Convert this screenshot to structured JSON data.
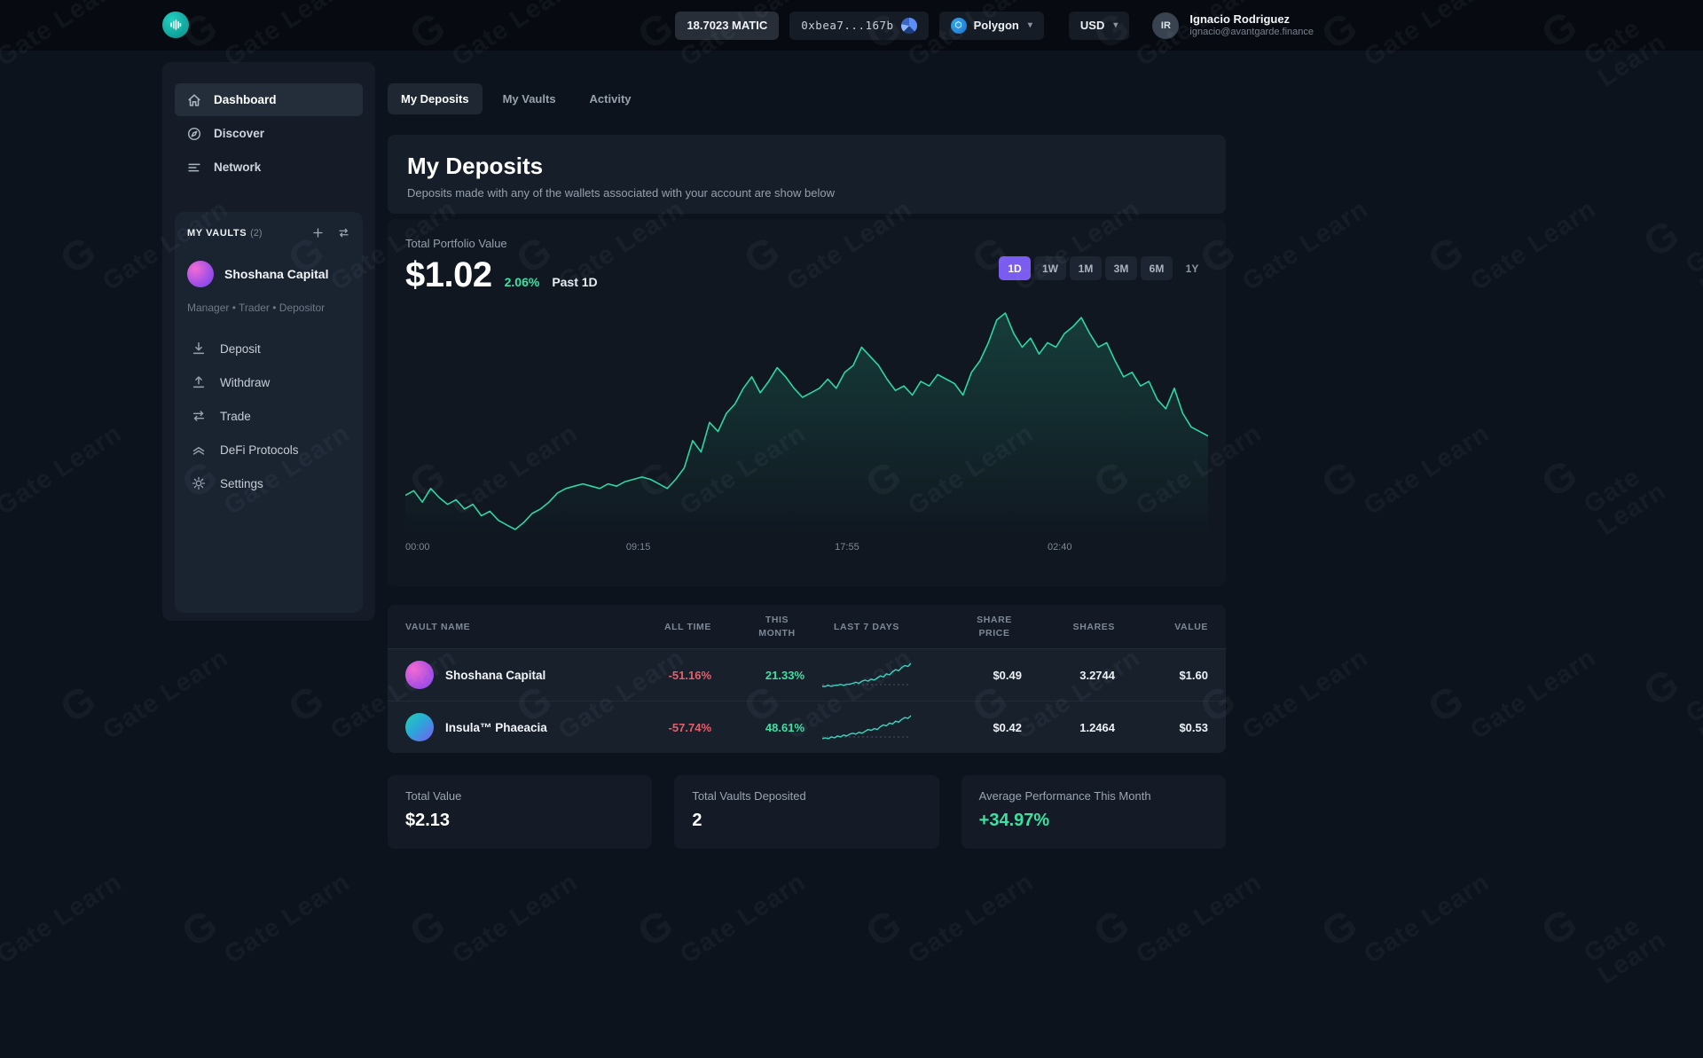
{
  "watermark": {
    "text": "Gate Learn",
    "logo": "G"
  },
  "topbar": {
    "balance": "18.7023 MATIC",
    "wallet": "0xbea7...167b",
    "network": "Polygon",
    "currency": "USD",
    "user": {
      "initials": "IR",
      "name": "Ignacio Rodriguez",
      "email": "ignacio@avantgarde.finance"
    }
  },
  "sidebar": {
    "nav": [
      {
        "label": "Dashboard",
        "icon": "home-icon",
        "active": true
      },
      {
        "label": "Discover",
        "icon": "compass-icon",
        "active": false
      },
      {
        "label": "Network",
        "icon": "network-icon",
        "active": false
      }
    ],
    "vaults_header": {
      "title": "MY VAULTS",
      "count": "(2)"
    },
    "vault": {
      "name": "Shoshana Capital",
      "roles": "Manager • Trader • Depositor"
    },
    "vault_menu": [
      {
        "label": "Deposit",
        "icon": "deposit-icon"
      },
      {
        "label": "Withdraw",
        "icon": "withdraw-icon"
      },
      {
        "label": "Trade",
        "icon": "trade-icon"
      },
      {
        "label": "DeFi Protocols",
        "icon": "defi-protocols-icon"
      },
      {
        "label": "Settings",
        "icon": "settings-icon"
      }
    ]
  },
  "tabs": [
    {
      "label": "My Deposits",
      "active": true
    },
    {
      "label": "My Vaults",
      "active": false
    },
    {
      "label": "Activity",
      "active": false
    }
  ],
  "page": {
    "title": "My Deposits",
    "subtitle": "Deposits made with any of the wallets associated with your account are show below"
  },
  "portfolio": {
    "label": "Total Portfolio Value",
    "value": "$1.02",
    "change": "2.06%",
    "period": "Past 1D",
    "ranges": [
      "1D",
      "1W",
      "1M",
      "3M",
      "6M",
      "1Y"
    ],
    "active_range": "1D",
    "x_labels": [
      "00:00",
      "09:15",
      "17:55",
      "02:40"
    ]
  },
  "chart_data": {
    "type": "line",
    "title": "Total Portfolio Value (Past 1D)",
    "xlabel": "time",
    "ylabel": "portfolio value (unlabeled axis, normalized 0-100)",
    "x_tick_labels": [
      "00:00",
      "09:15",
      "17:55",
      "02:40"
    ],
    "line_color": "#2fd6a4",
    "values": [
      19,
      21,
      16,
      22,
      18,
      15,
      17,
      13,
      15,
      10,
      12,
      8,
      6,
      4,
      7,
      11,
      13,
      16,
      20,
      22,
      23,
      24,
      23,
      22,
      24,
      23,
      25,
      26,
      27,
      26,
      24,
      22,
      26,
      31,
      43,
      38,
      51,
      47,
      55,
      59,
      66,
      71,
      64,
      69,
      75,
      71,
      66,
      62,
      64,
      66,
      70,
      66,
      73,
      76,
      84,
      80,
      76,
      70,
      65,
      67,
      63,
      69,
      67,
      72,
      70,
      68,
      63,
      73,
      78,
      86,
      96,
      99,
      90,
      84,
      88,
      81,
      86,
      84,
      90,
      93,
      97,
      90,
      84,
      86,
      78,
      71,
      73,
      67,
      69,
      61,
      57,
      66,
      55,
      49,
      47,
      45
    ]
  },
  "table": {
    "columns": [
      "VAULT NAME",
      "ALL TIME",
      "THIS MONTH",
      "LAST 7 DAYS",
      "SHARE PRICE",
      "SHARES",
      "VALUE"
    ],
    "rows": [
      {
        "name": "Shoshana Capital",
        "all_time": "-51.16%",
        "this_month": "21.33%",
        "share_price": "$0.49",
        "shares": "3.2744",
        "value": "$1.60",
        "spark": [
          3,
          3,
          4,
          3,
          4,
          4,
          5,
          4,
          5,
          5,
          6,
          7,
          6,
          8,
          9,
          8,
          10,
          9,
          11,
          13,
          12,
          15,
          14,
          17,
          19,
          18,
          21,
          23,
          22,
          25
        ]
      },
      {
        "name": "Insula™ Phaeacia",
        "all_time": "-57.74%",
        "this_month": "48.61%",
        "share_price": "$0.42",
        "shares": "1.2464",
        "value": "$0.53",
        "spark": [
          2,
          3,
          2,
          4,
          3,
          5,
          4,
          6,
          5,
          7,
          8,
          7,
          9,
          8,
          10,
          12,
          11,
          13,
          12,
          15,
          17,
          16,
          19,
          18,
          21,
          20,
          23,
          25,
          24,
          27
        ]
      }
    ]
  },
  "stats": [
    {
      "label": "Total Value",
      "value": "$2.13"
    },
    {
      "label": "Total Vaults Deposited",
      "value": "2"
    },
    {
      "label": "Average Performance This Month",
      "value": "+34.97%"
    }
  ],
  "colors": {
    "accent_purple": "#7a5cf0",
    "green": "#3fe0a0",
    "red": "#e5606c",
    "chart_line": "#2fd6a4",
    "spark_line": "#39d6c0",
    "background": "#0d131c",
    "card": "#151c27"
  }
}
